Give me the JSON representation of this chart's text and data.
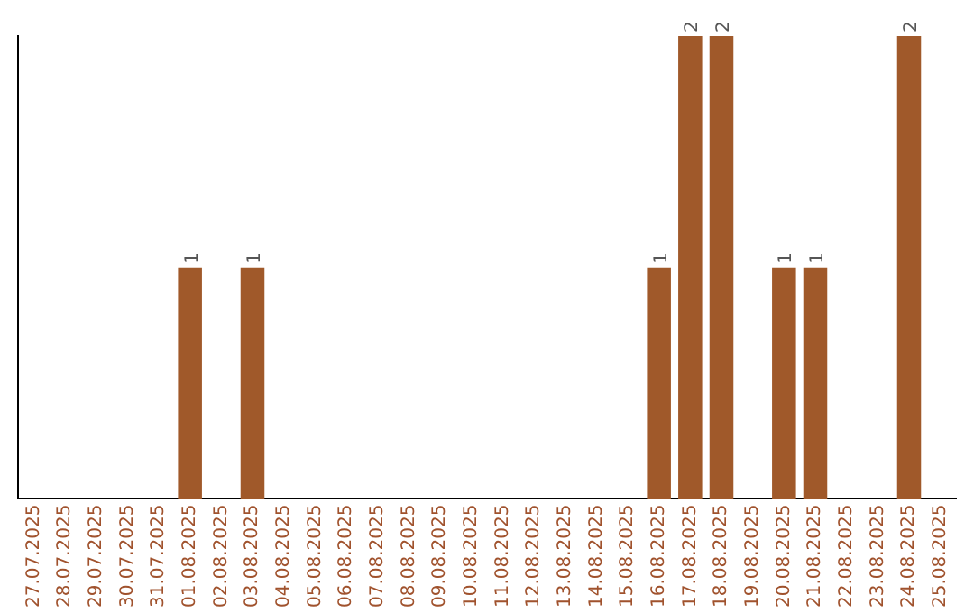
{
  "chart_data": {
    "type": "bar",
    "categories": [
      "27.07.2025",
      "28.07.2025",
      "29.07.2025",
      "30.07.2025",
      "31.07.2025",
      "01.08.2025",
      "02.08.2025",
      "03.08.2025",
      "04.08.2025",
      "05.08.2025",
      "06.08.2025",
      "07.08.2025",
      "08.08.2025",
      "09.08.2025",
      "10.08.2025",
      "11.08.2025",
      "12.08.2025",
      "13.08.2025",
      "14.08.2025",
      "15.08.2025",
      "16.08.2025",
      "17.08.2025",
      "18.08.2025",
      "19.08.2025",
      "20.08.2025",
      "21.08.2025",
      "22.08.2025",
      "23.08.2025",
      "24.08.2025",
      "25.08.2025"
    ],
    "values": [
      0,
      0,
      0,
      0,
      0,
      1,
      0,
      1,
      0,
      0,
      0,
      0,
      0,
      0,
      0,
      0,
      0,
      0,
      0,
      0,
      1,
      2,
      2,
      0,
      1,
      1,
      0,
      0,
      2,
      0
    ],
    "value_labels": [
      null,
      null,
      null,
      null,
      null,
      "1",
      null,
      "1",
      null,
      null,
      null,
      null,
      null,
      null,
      null,
      null,
      null,
      null,
      null,
      null,
      "1",
      "2",
      "2",
      null,
      "1",
      "1",
      null,
      null,
      "2",
      null
    ],
    "color": "#a0592a",
    "ylim": [
      0,
      2
    ],
    "grid": false,
    "legend": false,
    "tick_labels": "x"
  }
}
